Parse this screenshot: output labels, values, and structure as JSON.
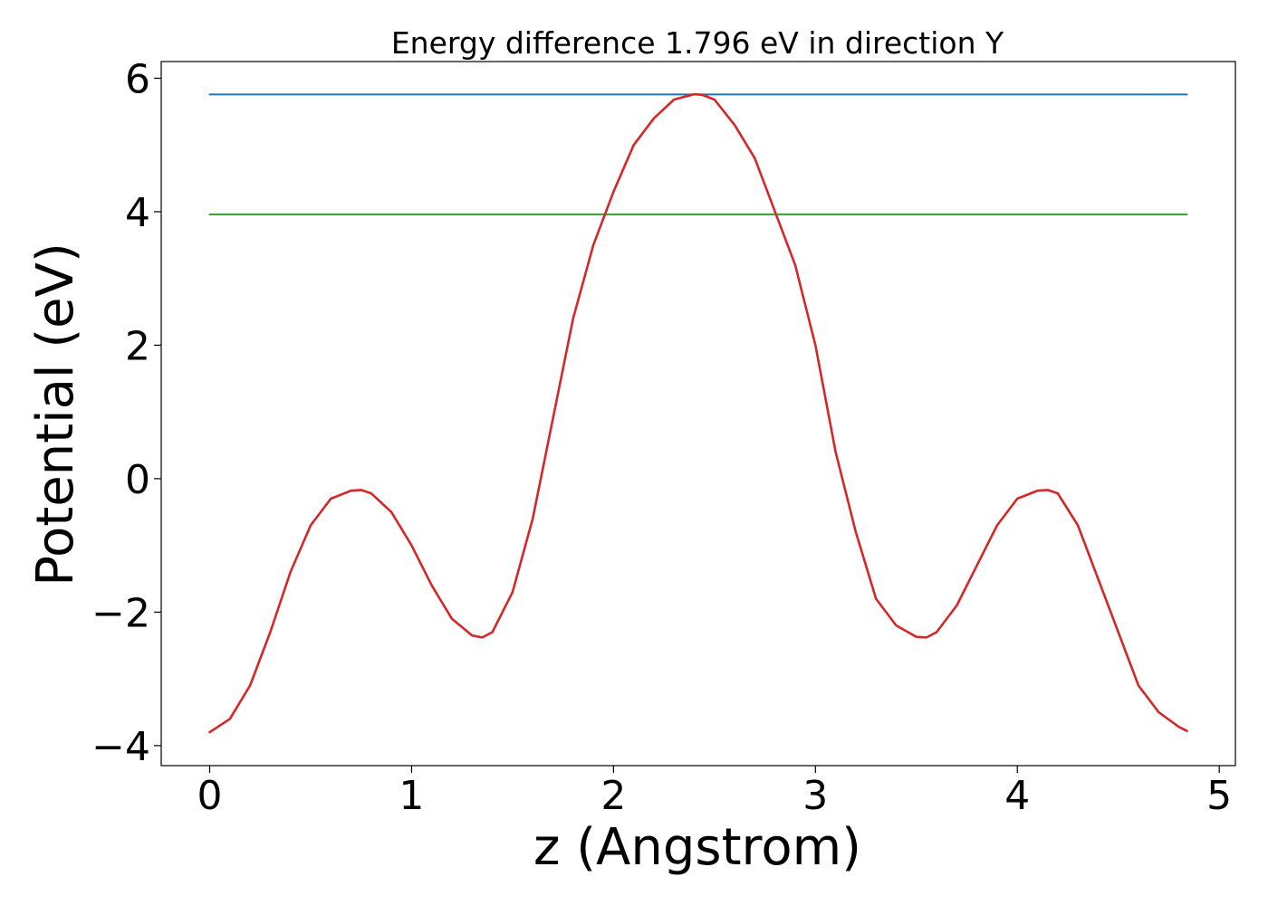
{
  "chart_data": {
    "type": "line",
    "title": "Energy difference 1.796 eV in direction Y",
    "xlabel": "z (Angstrom)",
    "ylabel": "Potential (eV)",
    "xlim": [
      -0.24,
      5.08
    ],
    "ylim": [
      -4.3,
      6.25
    ],
    "xticks": [
      0,
      1,
      2,
      3,
      4,
      5
    ],
    "xtick_labels": [
      "0",
      "1",
      "2",
      "3",
      "4",
      "5"
    ],
    "yticks": [
      -4,
      -2,
      0,
      2,
      4,
      6
    ],
    "ytick_labels": [
      "−4",
      "−2",
      "0",
      "2",
      "4",
      "6"
    ],
    "grid": false,
    "series": [
      {
        "color": "#d62728",
        "x": [
          0.0,
          0.1,
          0.2,
          0.3,
          0.4,
          0.5,
          0.6,
          0.7,
          0.75,
          0.8,
          0.9,
          1.0,
          1.1,
          1.2,
          1.3,
          1.35,
          1.4,
          1.5,
          1.6,
          1.7,
          1.8,
          1.9,
          2.0,
          2.1,
          2.2,
          2.3,
          2.4,
          2.44,
          2.5,
          2.6,
          2.7,
          2.8,
          2.9,
          3.0,
          3.1,
          3.2,
          3.3,
          3.4,
          3.5,
          3.55,
          3.6,
          3.7,
          3.8,
          3.9,
          4.0,
          4.1,
          4.15,
          4.2,
          4.3,
          4.4,
          4.5,
          4.6,
          4.7,
          4.8,
          4.84
        ],
        "y": [
          -3.8,
          -3.6,
          -3.1,
          -2.3,
          -1.4,
          -0.7,
          -0.3,
          -0.18,
          -0.17,
          -0.22,
          -0.5,
          -1.0,
          -1.6,
          -2.1,
          -2.35,
          -2.38,
          -2.3,
          -1.7,
          -0.6,
          0.9,
          2.4,
          3.5,
          4.3,
          5.0,
          5.4,
          5.68,
          5.76,
          5.75,
          5.68,
          5.3,
          4.8,
          4.0,
          3.2,
          2.0,
          0.4,
          -0.8,
          -1.8,
          -2.2,
          -2.37,
          -2.38,
          -2.3,
          -1.9,
          -1.3,
          -0.7,
          -0.3,
          -0.18,
          -0.17,
          -0.22,
          -0.7,
          -1.5,
          -2.3,
          -3.1,
          -3.5,
          -3.72,
          -3.78
        ]
      },
      {
        "color": "#1f77b4",
        "x": [
          0.0,
          4.84
        ],
        "y": [
          5.756,
          5.756
        ]
      },
      {
        "color": "#2ca02c",
        "x": [
          0.0,
          4.84
        ],
        "y": [
          3.96,
          3.96
        ]
      }
    ]
  }
}
